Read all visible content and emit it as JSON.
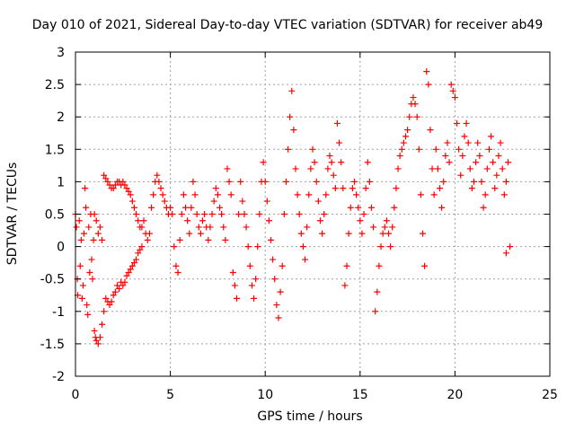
{
  "chart_data": {
    "type": "scatter",
    "title": "Day 010 of 2021, Sidereal Day-to-day VTEC variation (SDTVAR) for receiver ab49",
    "xlabel": "GPS time / hours",
    "ylabel": "SDTVAR / TECUs",
    "xlim": [
      0,
      25
    ],
    "ylim": [
      -2,
      3
    ],
    "xticks": [
      0,
      5,
      10,
      15,
      20,
      25
    ],
    "yticks": [
      -2,
      -1.5,
      -1,
      -0.5,
      0,
      0.5,
      1,
      1.5,
      2,
      2.5,
      3
    ],
    "grid": true,
    "marker": "+",
    "color": "#ff0000",
    "series": [
      {
        "name": "SDTVAR",
        "points": [
          [
            0.0,
            0.5
          ],
          [
            0.05,
            0.3
          ],
          [
            0.1,
            -0.5
          ],
          [
            0.12,
            -0.75
          ],
          [
            0.2,
            0.4
          ],
          [
            0.25,
            -0.3
          ],
          [
            0.3,
            0.1
          ],
          [
            0.35,
            -0.8
          ],
          [
            0.4,
            -0.6
          ],
          [
            0.45,
            0.2
          ],
          [
            0.5,
            0.9
          ],
          [
            0.55,
            0.6
          ],
          [
            0.6,
            -0.9
          ],
          [
            0.65,
            -1.05
          ],
          [
            0.7,
            0.3
          ],
          [
            0.75,
            -0.4
          ],
          [
            0.8,
            0.5
          ],
          [
            0.85,
            -0.2
          ],
          [
            0.9,
            -0.5
          ],
          [
            0.95,
            0.1
          ],
          [
            1.0,
            -1.3
          ],
          [
            1.05,
            -1.4
          ],
          [
            1.1,
            -1.45
          ],
          [
            1.2,
            -1.5
          ],
          [
            1.3,
            -1.4
          ],
          [
            1.4,
            -1.2
          ],
          [
            1.5,
            -1.0
          ],
          [
            1.6,
            -0.8
          ],
          [
            1.7,
            -0.85
          ],
          [
            1.8,
            -0.9
          ],
          [
            1.9,
            -0.85
          ],
          [
            2.0,
            -0.75
          ],
          [
            2.1,
            -0.7
          ],
          [
            2.2,
            -0.6
          ],
          [
            2.3,
            -0.65
          ],
          [
            2.4,
            -0.55
          ],
          [
            2.5,
            -0.6
          ],
          [
            2.6,
            -0.55
          ],
          [
            2.7,
            -0.45
          ],
          [
            2.8,
            -0.4
          ],
          [
            2.9,
            -0.35
          ],
          [
            3.0,
            -0.3
          ],
          [
            3.1,
            -0.25
          ],
          [
            3.2,
            -0.2
          ],
          [
            3.3,
            -0.1
          ],
          [
            3.4,
            -0.05
          ],
          [
            3.5,
            0.0
          ],
          [
            1.0,
            0.5
          ],
          [
            1.1,
            0.4
          ],
          [
            1.2,
            0.2
          ],
          [
            1.3,
            0.3
          ],
          [
            1.4,
            0.1
          ],
          [
            1.5,
            1.1
          ],
          [
            1.6,
            1.05
          ],
          [
            1.7,
            1.0
          ],
          [
            1.8,
            0.95
          ],
          [
            1.9,
            0.9
          ],
          [
            2.0,
            0.9
          ],
          [
            2.1,
            0.95
          ],
          [
            2.2,
            1.0
          ],
          [
            2.3,
            1.0
          ],
          [
            2.4,
            0.95
          ],
          [
            2.5,
            1.0
          ],
          [
            2.6,
            0.95
          ],
          [
            2.7,
            0.9
          ],
          [
            2.8,
            0.85
          ],
          [
            2.9,
            0.8
          ],
          [
            3.0,
            0.7
          ],
          [
            3.1,
            0.6
          ],
          [
            3.2,
            0.5
          ],
          [
            3.3,
            0.4
          ],
          [
            3.4,
            0.3
          ],
          [
            3.5,
            0.3
          ],
          [
            3.6,
            0.4
          ],
          [
            3.7,
            0.2
          ],
          [
            3.8,
            0.1
          ],
          [
            3.9,
            0.2
          ],
          [
            4.0,
            0.6
          ],
          [
            4.1,
            0.8
          ],
          [
            4.2,
            1.0
          ],
          [
            4.3,
            1.1
          ],
          [
            4.4,
            1.0
          ],
          [
            4.5,
            0.9
          ],
          [
            4.6,
            0.8
          ],
          [
            4.7,
            0.7
          ],
          [
            4.8,
            0.6
          ],
          [
            4.9,
            0.5
          ],
          [
            5.0,
            0.6
          ],
          [
            5.1,
            0.5
          ],
          [
            5.2,
            0.0
          ],
          [
            5.3,
            -0.3
          ],
          [
            5.4,
            -0.4
          ],
          [
            5.5,
            0.1
          ],
          [
            5.6,
            0.5
          ],
          [
            5.7,
            0.8
          ],
          [
            5.8,
            0.6
          ],
          [
            5.9,
            0.4
          ],
          [
            6.0,
            0.2
          ],
          [
            6.1,
            0.6
          ],
          [
            6.2,
            1.0
          ],
          [
            6.3,
            0.8
          ],
          [
            6.4,
            0.5
          ],
          [
            6.5,
            0.3
          ],
          [
            6.6,
            0.2
          ],
          [
            6.7,
            0.4
          ],
          [
            6.8,
            0.5
          ],
          [
            6.9,
            0.3
          ],
          [
            7.0,
            0.1
          ],
          [
            7.1,
            0.3
          ],
          [
            7.2,
            0.5
          ],
          [
            7.3,
            0.7
          ],
          [
            7.4,
            0.9
          ],
          [
            7.5,
            0.8
          ],
          [
            7.6,
            0.6
          ],
          [
            7.7,
            0.5
          ],
          [
            7.8,
            0.3
          ],
          [
            7.9,
            0.1
          ],
          [
            8.0,
            1.2
          ],
          [
            8.1,
            1.0
          ],
          [
            8.2,
            0.8
          ],
          [
            8.3,
            -0.4
          ],
          [
            8.4,
            -0.6
          ],
          [
            8.5,
            -0.8
          ],
          [
            8.6,
            0.5
          ],
          [
            8.7,
            1.0
          ],
          [
            8.8,
            0.7
          ],
          [
            8.9,
            0.5
          ],
          [
            9.0,
            0.3
          ],
          [
            9.1,
            0.0
          ],
          [
            9.2,
            -0.3
          ],
          [
            9.3,
            -0.6
          ],
          [
            9.4,
            -0.8
          ],
          [
            9.5,
            -0.5
          ],
          [
            9.6,
            0.0
          ],
          [
            9.7,
            0.5
          ],
          [
            9.8,
            1.0
          ],
          [
            9.9,
            1.3
          ],
          [
            10.0,
            1.0
          ],
          [
            10.1,
            0.7
          ],
          [
            10.2,
            0.4
          ],
          [
            10.3,
            0.1
          ],
          [
            10.4,
            -0.2
          ],
          [
            10.5,
            -0.5
          ],
          [
            10.6,
            -0.9
          ],
          [
            10.7,
            -1.1
          ],
          [
            10.8,
            -0.7
          ],
          [
            10.9,
            -0.3
          ],
          [
            11.0,
            0.5
          ],
          [
            11.1,
            1.0
          ],
          [
            11.2,
            1.5
          ],
          [
            11.3,
            2.0
          ],
          [
            11.4,
            2.4
          ],
          [
            11.5,
            1.8
          ],
          [
            11.6,
            1.2
          ],
          [
            11.7,
            0.8
          ],
          [
            11.8,
            0.5
          ],
          [
            11.9,
            0.2
          ],
          [
            12.0,
            0.0
          ],
          [
            12.1,
            -0.2
          ],
          [
            12.2,
            0.3
          ],
          [
            12.3,
            0.8
          ],
          [
            12.4,
            1.2
          ],
          [
            12.5,
            1.5
          ],
          [
            12.6,
            1.3
          ],
          [
            12.7,
            1.0
          ],
          [
            12.8,
            0.7
          ],
          [
            12.9,
            0.4
          ],
          [
            13.0,
            0.2
          ],
          [
            13.1,
            0.5
          ],
          [
            13.2,
            0.8
          ],
          [
            13.3,
            1.2
          ],
          [
            13.4,
            1.4
          ],
          [
            13.5,
            1.3
          ],
          [
            13.6,
            1.1
          ],
          [
            13.7,
            0.9
          ],
          [
            13.8,
            1.9
          ],
          [
            13.9,
            1.6
          ],
          [
            14.0,
            1.3
          ],
          [
            14.1,
            0.9
          ],
          [
            14.2,
            -0.6
          ],
          [
            14.3,
            -0.3
          ],
          [
            14.4,
            0.2
          ],
          [
            14.5,
            0.6
          ],
          [
            14.6,
            0.9
          ],
          [
            14.7,
            1.0
          ],
          [
            14.8,
            0.8
          ],
          [
            14.9,
            0.6
          ],
          [
            15.0,
            0.4
          ],
          [
            15.1,
            0.2
          ],
          [
            15.2,
            0.5
          ],
          [
            15.3,
            0.9
          ],
          [
            15.4,
            1.3
          ],
          [
            15.5,
            1.0
          ],
          [
            15.6,
            0.6
          ],
          [
            15.7,
            0.3
          ],
          [
            15.8,
            -1.0
          ],
          [
            15.9,
            -0.7
          ],
          [
            16.0,
            -0.3
          ],
          [
            16.1,
            0.0
          ],
          [
            16.2,
            0.2
          ],
          [
            16.3,
            0.3
          ],
          [
            16.4,
            0.4
          ],
          [
            16.5,
            0.2
          ],
          [
            16.6,
            0.0
          ],
          [
            16.7,
            0.3
          ],
          [
            16.8,
            0.6
          ],
          [
            16.9,
            0.9
          ],
          [
            17.0,
            1.2
          ],
          [
            17.1,
            1.4
          ],
          [
            17.2,
            1.5
          ],
          [
            17.3,
            1.6
          ],
          [
            17.4,
            1.7
          ],
          [
            17.5,
            1.8
          ],
          [
            17.6,
            2.0
          ],
          [
            17.7,
            2.2
          ],
          [
            17.8,
            2.3
          ],
          [
            17.9,
            2.2
          ],
          [
            18.0,
            2.0
          ],
          [
            18.1,
            1.5
          ],
          [
            18.2,
            0.8
          ],
          [
            18.3,
            0.2
          ],
          [
            18.4,
            -0.3
          ],
          [
            18.5,
            2.7
          ],
          [
            18.6,
            2.5
          ],
          [
            18.7,
            1.8
          ],
          [
            18.8,
            1.2
          ],
          [
            18.9,
            0.8
          ],
          [
            19.0,
            1.5
          ],
          [
            19.1,
            1.2
          ],
          [
            19.2,
            0.9
          ],
          [
            19.3,
            0.6
          ],
          [
            19.4,
            1.0
          ],
          [
            19.5,
            1.4
          ],
          [
            19.6,
            1.6
          ],
          [
            19.7,
            1.3
          ],
          [
            19.8,
            2.5
          ],
          [
            19.9,
            2.4
          ],
          [
            20.0,
            2.3
          ],
          [
            20.1,
            1.9
          ],
          [
            20.2,
            1.5
          ],
          [
            20.3,
            1.1
          ],
          [
            20.4,
            1.4
          ],
          [
            20.5,
            1.7
          ],
          [
            20.6,
            1.9
          ],
          [
            20.7,
            1.6
          ],
          [
            20.8,
            1.2
          ],
          [
            20.9,
            0.9
          ],
          [
            21.0,
            1.0
          ],
          [
            21.1,
            1.3
          ],
          [
            21.2,
            1.6
          ],
          [
            21.3,
            1.4
          ],
          [
            21.4,
            1.0
          ],
          [
            21.5,
            0.6
          ],
          [
            21.6,
            0.8
          ],
          [
            21.7,
            1.2
          ],
          [
            21.8,
            1.5
          ],
          [
            21.9,
            1.7
          ],
          [
            22.0,
            1.3
          ],
          [
            22.1,
            0.9
          ],
          [
            22.2,
            1.1
          ],
          [
            22.3,
            1.4
          ],
          [
            22.4,
            1.6
          ],
          [
            22.5,
            1.2
          ],
          [
            22.6,
            0.8
          ],
          [
            22.7,
            1.0
          ],
          [
            22.8,
            1.3
          ],
          [
            22.9,
            0.0
          ],
          [
            22.7,
            -0.1
          ]
        ]
      }
    ]
  }
}
